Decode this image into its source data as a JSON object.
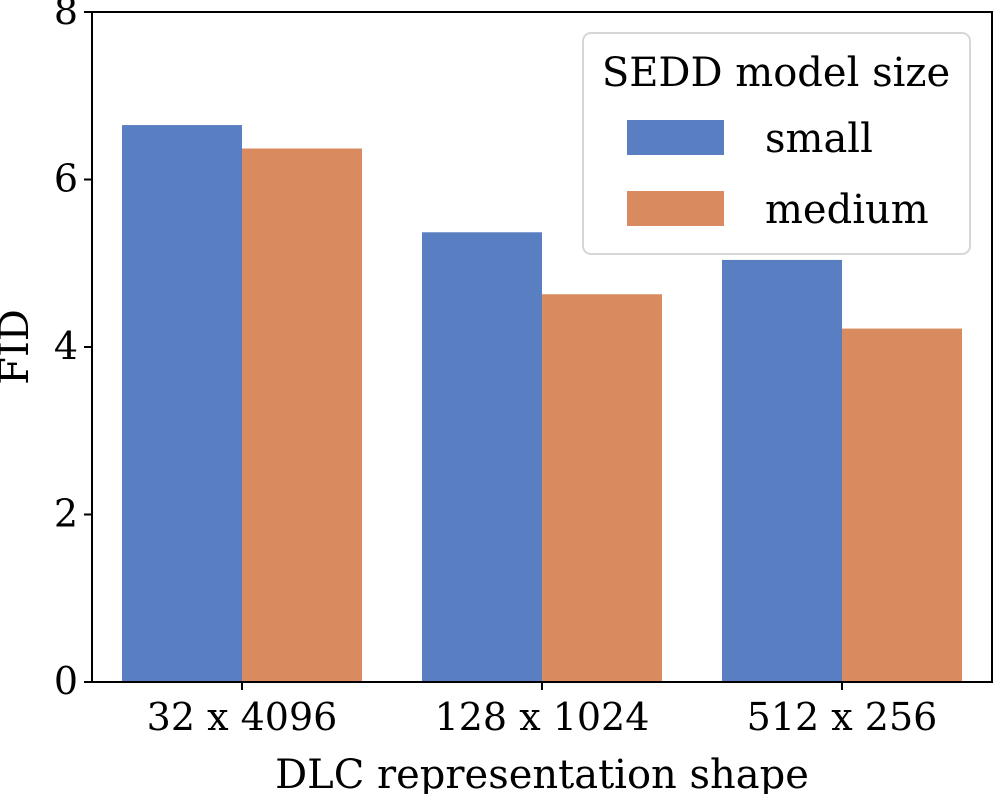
{
  "chart_data": {
    "type": "bar",
    "categories": [
      "32 x 4096",
      "128 x 1024",
      "512 x 256"
    ],
    "series": [
      {
        "name": "small",
        "values": [
          6.65,
          5.37,
          5.04
        ],
        "color": "#5a7ec2"
      },
      {
        "name": "medium",
        "values": [
          6.37,
          4.63,
          4.22
        ],
        "color": "#d98b5f"
      }
    ],
    "xlabel": "DLC representation shape",
    "ylabel": "FID",
    "ylim": [
      0,
      8
    ],
    "yticks": [
      0,
      2,
      4,
      6,
      8
    ],
    "legend": {
      "title": "SEDD model size",
      "position": "top-right"
    },
    "grid": false
  }
}
